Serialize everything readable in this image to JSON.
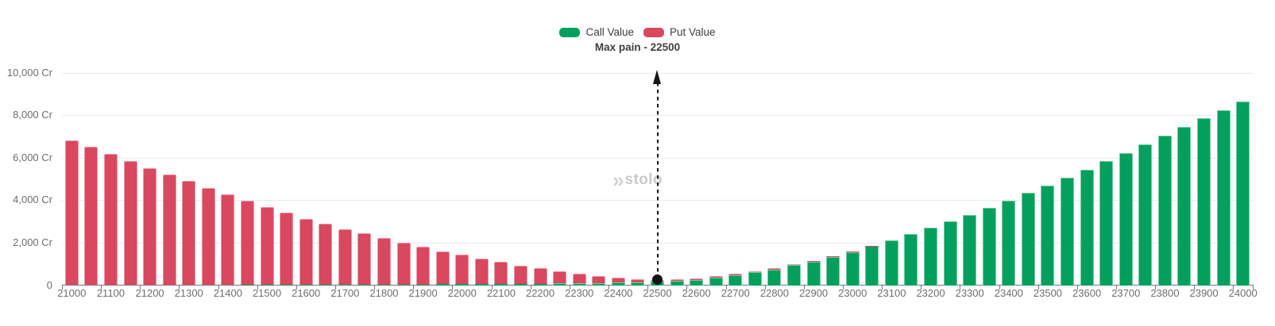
{
  "title": "Max pain - 22500",
  "watermark": {
    "icon": "»",
    "text": "stolo"
  },
  "chart_data": {
    "type": "bar",
    "stacked": true,
    "title": "Max pain - 22500",
    "max_pain_strike": 22500,
    "legend_position": "top-center",
    "grid": true,
    "y_axis": {
      "max": 10000,
      "tick_values": [
        0,
        2000,
        4000,
        6000,
        8000,
        10000
      ],
      "tick_labels": [
        "0",
        "2,000 Cr",
        "4,000 Cr",
        "6,000 Cr",
        "8,000 Cr",
        "10,000 Cr"
      ]
    },
    "x_axis": {
      "label_every": 100
    },
    "categories": [
      21000,
      21050,
      21100,
      21150,
      21200,
      21250,
      21300,
      21350,
      21400,
      21450,
      21500,
      21550,
      21600,
      21650,
      21700,
      21750,
      21800,
      21850,
      21900,
      21950,
      22000,
      22050,
      22100,
      22150,
      22200,
      22250,
      22300,
      22350,
      22400,
      22450,
      22500,
      22550,
      22600,
      22650,
      22700,
      22750,
      22800,
      22850,
      22900,
      22950,
      23000,
      23050,
      23100,
      23150,
      23200,
      23250,
      23300,
      23350,
      23400,
      23450,
      23500,
      23550,
      23600,
      23650,
      23700,
      23750,
      23800,
      23850,
      23900,
      23950,
      24000
    ],
    "series": [
      {
        "name": "Call Value",
        "color": "#02a05c",
        "values": [
          8,
          8,
          9,
          10,
          10,
          11,
          12,
          13,
          14,
          15,
          16,
          17,
          18,
          20,
          22,
          24,
          27,
          30,
          34,
          38,
          44,
          50,
          57,
          65,
          74,
          84,
          96,
          110,
          126,
          144,
          163,
          205,
          253,
          354,
          457,
          603,
          728,
          937,
          1112,
          1334,
          1566,
          1833,
          2120,
          2408,
          2695,
          2993,
          3314,
          3645,
          3991,
          4341,
          4688,
          5061,
          5423,
          5833,
          6205,
          6626,
          7047,
          7445,
          7844,
          8239,
          8625
        ]
      },
      {
        "name": "Put Value",
        "color": "#d9485e",
        "values": [
          6810,
          6490,
          6170,
          5845,
          5505,
          5180,
          4885,
          4560,
          4245,
          3960,
          3675,
          3398,
          3115,
          2865,
          2625,
          2425,
          2198,
          1985,
          1780,
          1565,
          1385,
          1195,
          1050,
          865,
          735,
          588,
          440,
          338,
          222,
          142,
          72,
          75,
          75,
          65,
          72,
          60,
          62,
          55,
          40,
          30,
          22,
          16,
          12,
          10,
          8,
          7,
          6,
          5,
          4,
          4,
          4,
          3,
          3,
          3,
          3,
          2,
          2,
          2,
          2,
          2,
          2
        ]
      }
    ]
  }
}
